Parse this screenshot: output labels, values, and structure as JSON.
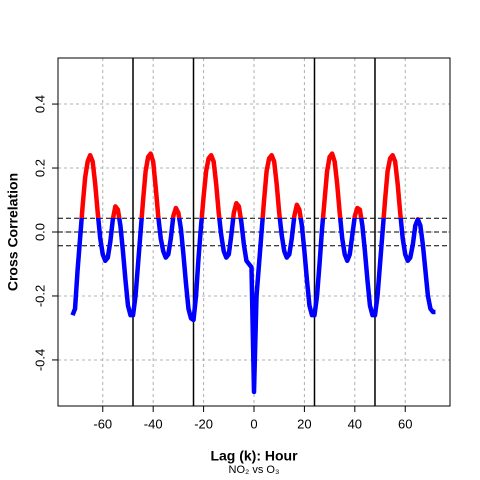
{
  "chart_data": {
    "type": "line",
    "xlabel": "Lag (k): Hour",
    "ylabel": "Cross Correlation",
    "subtitle": "NO₂ vs O₃",
    "x": [
      -72,
      -71,
      -70,
      -69,
      -68,
      -67,
      -66,
      -65,
      -64,
      -63,
      -62,
      -61,
      -60,
      -59,
      -58,
      -57,
      -56,
      -55,
      -54,
      -53,
      -52,
      -51,
      -50,
      -49,
      -48,
      -47,
      -46,
      -45,
      -44,
      -43,
      -42,
      -41,
      -40,
      -39,
      -38,
      -37,
      -36,
      -35,
      -34,
      -33,
      -32,
      -31,
      -30,
      -29,
      -28,
      -27,
      -26,
      -25,
      -24,
      -23,
      -22,
      -21,
      -20,
      -19,
      -18,
      -17,
      -16,
      -15,
      -14,
      -13,
      -12,
      -11,
      -10,
      -9,
      -8,
      -7,
      -6,
      -5,
      -4,
      -3,
      -2,
      -1,
      0,
      1,
      2,
      3,
      4,
      5,
      6,
      7,
      8,
      9,
      10,
      11,
      12,
      13,
      14,
      15,
      16,
      17,
      18,
      19,
      20,
      21,
      22,
      23,
      24,
      25,
      26,
      27,
      28,
      29,
      30,
      31,
      32,
      33,
      34,
      35,
      36,
      37,
      38,
      39,
      40,
      41,
      42,
      43,
      44,
      45,
      46,
      47,
      48,
      49,
      50,
      51,
      52,
      53,
      54,
      55,
      56,
      57,
      58,
      59,
      60,
      61,
      62,
      63,
      64,
      65,
      66,
      67,
      68,
      69,
      70,
      71,
      72
    ],
    "series": [
      {
        "values": [
          -0.26,
          -0.24,
          -0.12,
          -0.02,
          0.08,
          0.17,
          0.22,
          0.24,
          0.22,
          0.15,
          0.06,
          -0.02,
          -0.07,
          -0.09,
          -0.08,
          -0.03,
          0.04,
          0.08,
          0.07,
          0.02,
          -0.06,
          -0.15,
          -0.23,
          -0.26,
          -0.26,
          -0.2,
          -0.1,
          0.0,
          0.1,
          0.19,
          0.235,
          0.245,
          0.22,
          0.14,
          0.05,
          -0.02,
          -0.06,
          -0.08,
          -0.07,
          -0.02,
          0.05,
          0.075,
          0.06,
          0.01,
          -0.07,
          -0.16,
          -0.24,
          -0.27,
          -0.275,
          -0.2,
          -0.08,
          0.02,
          0.11,
          0.19,
          0.23,
          0.24,
          0.22,
          0.15,
          0.06,
          -0.01,
          -0.06,
          -0.08,
          -0.07,
          -0.01,
          0.06,
          0.09,
          0.08,
          0.03,
          -0.04,
          -0.09,
          -0.1,
          -0.11,
          -0.5,
          -0.2,
          -0.1,
          0.0,
          0.1,
          0.19,
          0.23,
          0.24,
          0.22,
          0.15,
          0.06,
          -0.01,
          -0.06,
          -0.08,
          -0.07,
          -0.02,
          0.05,
          0.085,
          0.07,
          0.02,
          -0.06,
          -0.15,
          -0.23,
          -0.26,
          -0.26,
          -0.2,
          -0.1,
          0.01,
          0.1,
          0.19,
          0.235,
          0.245,
          0.22,
          0.15,
          0.06,
          -0.02,
          -0.07,
          -0.09,
          -0.07,
          -0.01,
          0.05,
          0.075,
          0.07,
          0.02,
          -0.06,
          -0.15,
          -0.23,
          -0.26,
          -0.26,
          -0.2,
          -0.1,
          0.0,
          0.1,
          0.19,
          0.23,
          0.24,
          0.22,
          0.15,
          0.06,
          -0.02,
          -0.07,
          -0.09,
          -0.08,
          -0.04,
          0.02,
          0.04,
          0.02,
          -0.04,
          -0.12,
          -0.2,
          -0.24,
          -0.25,
          -0.25
        ]
      }
    ],
    "threshold": 0.043,
    "color_above": "#ff0000",
    "color_below": "#0000ff",
    "hlines": [
      0.043,
      0,
      -0.043
    ],
    "vlines": [
      -48,
      -24,
      24,
      48
    ],
    "xlim": [
      -77.76,
      77.76
    ],
    "ylim": [
      -0.544,
      0.544
    ],
    "xticks": [
      -60,
      -40,
      -20,
      0,
      20,
      40,
      60
    ],
    "yticks": [
      -0.4,
      -0.2,
      {
        "value": 0,
        "label": "0.0"
      },
      0.2,
      0.4
    ],
    "grid": true
  }
}
